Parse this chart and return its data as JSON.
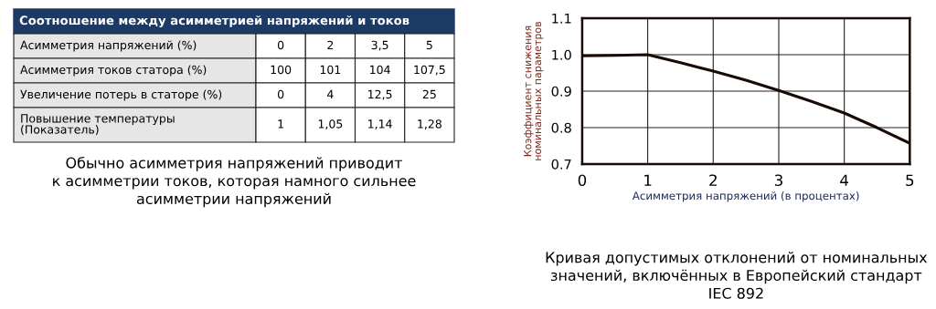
{
  "chart_data": [
    {
      "type": "other",
      "title": "Соотношение между асимметрией напряжений и токов",
      "y_categories": [
        "Асимметрия напряжений (%)",
        "Асимметрия токов статора (%)",
        "Увеличение потерь в статоре (%)",
        "Повышение температуры\n(Показатель)"
      ],
      "cell_labels": [
        [
          "0",
          "2",
          "3,5",
          "5"
        ],
        [
          "100",
          "101",
          "104",
          "107,5"
        ],
        [
          "0",
          "4",
          "12,5",
          "25"
        ],
        [
          "1",
          "1,05",
          "1,14",
          "1,28"
        ]
      ],
      "annotations": [
        "Обычно асимметрия напряжений приводит\nк асимметрии токов, которая намного сильнее\nасимметрии напряжений"
      ]
    },
    {
      "type": "line",
      "xlabel": "Асимметрия напряжений (в процентах)",
      "ylabel": "Коэффициент снижения\nноминальных параметров",
      "x": [
        0,
        0.5,
        1,
        1.5,
        2,
        2.5,
        3,
        3.5,
        4,
        4.5,
        5
      ],
      "series": [
        {
          "color": "#1a0a05",
          "values": [
            0.997,
            0.998,
            1.0,
            0.978,
            0.955,
            0.93,
            0.902,
            0.872,
            0.84,
            0.8,
            0.757
          ]
        }
      ],
      "xlim": [
        0,
        5
      ],
      "ylim": [
        0.7,
        1.1
      ],
      "xticks": [
        0,
        1,
        2,
        3,
        4,
        5
      ],
      "yticks": [
        {
          "value": 0.7,
          "label": "0.7"
        },
        {
          "value": 0.8,
          "label": "0.8"
        },
        {
          "value": 0.9,
          "label": "0.9"
        },
        {
          "value": 1.0,
          "label": "1.0"
        },
        {
          "value": 1.1,
          "label": "1.1"
        }
      ],
      "grid": true,
      "marker": "none",
      "line_style": "solid",
      "annotations": [
        "Кривая допустимых отклонений от номинальных\nзначений, включённых в Европейский стандарт\nIEC 892"
      ]
    }
  ]
}
